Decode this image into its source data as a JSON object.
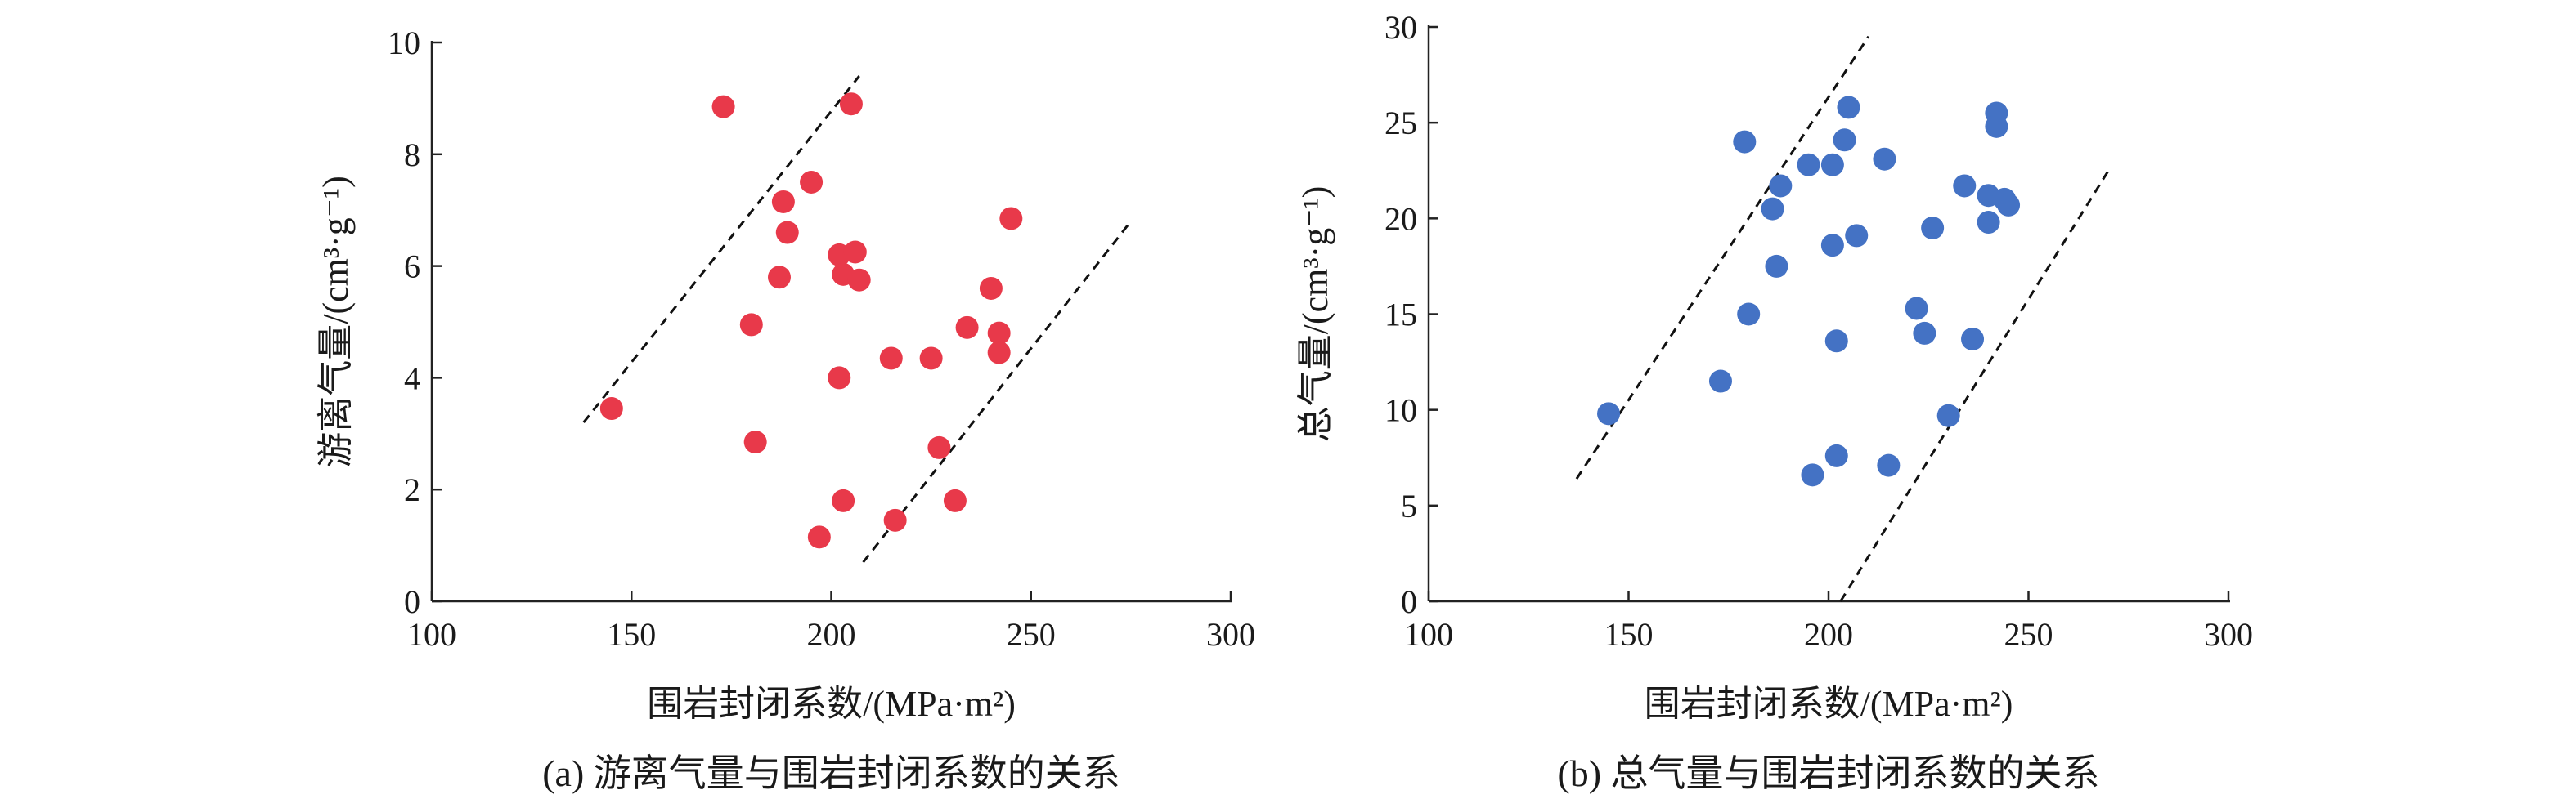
{
  "chart_data": [
    {
      "type": "scatter",
      "caption": "(a) 游离气量与围岩封闭系数的关系",
      "xlabel": "围岩封闭系数/(MPa·m²)",
      "ylabel": "游离气量/(cm³·g⁻¹)",
      "xlim": [
        100,
        300
      ],
      "ylim": [
        0,
        10
      ],
      "xticks": [
        100,
        150,
        200,
        250,
        300
      ],
      "yticks": [
        0,
        2,
        4,
        6,
        8,
        10
      ],
      "grid": false,
      "point_color": "#e8394a",
      "points": [
        {
          "x": 145,
          "y": 3.45
        },
        {
          "x": 173,
          "y": 8.85
        },
        {
          "x": 180,
          "y": 4.95
        },
        {
          "x": 181,
          "y": 2.85
        },
        {
          "x": 187,
          "y": 5.8
        },
        {
          "x": 188,
          "y": 7.15
        },
        {
          "x": 189,
          "y": 6.6
        },
        {
          "x": 195,
          "y": 7.5
        },
        {
          "x": 197,
          "y": 1.15
        },
        {
          "x": 202,
          "y": 6.2
        },
        {
          "x": 202,
          "y": 4.0
        },
        {
          "x": 203,
          "y": 5.85
        },
        {
          "x": 203,
          "y": 1.8
        },
        {
          "x": 205,
          "y": 8.9
        },
        {
          "x": 206,
          "y": 6.25
        },
        {
          "x": 207,
          "y": 5.75
        },
        {
          "x": 215,
          "y": 4.35
        },
        {
          "x": 216,
          "y": 1.45
        },
        {
          "x": 225,
          "y": 4.35
        },
        {
          "x": 227,
          "y": 2.75
        },
        {
          "x": 231,
          "y": 1.8
        },
        {
          "x": 234,
          "y": 4.9
        },
        {
          "x": 240,
          "y": 5.6
        },
        {
          "x": 242,
          "y": 4.8
        },
        {
          "x": 242,
          "y": 4.45
        },
        {
          "x": 245,
          "y": 6.85
        }
      ],
      "boundary_lines": [
        {
          "from": {
            "x": 138,
            "y": 3.2
          },
          "to": {
            "x": 207,
            "y": 9.4
          }
        },
        {
          "from": {
            "x": 208,
            "y": 0.7
          },
          "to": {
            "x": 275,
            "y": 6.8
          }
        }
      ]
    },
    {
      "type": "scatter",
      "caption": "(b) 总气量与围岩封闭系数的关系",
      "xlabel": "围岩封闭系数/(MPa·m²)",
      "ylabel": "总气量/(cm³·g⁻¹)",
      "xlim": [
        100,
        300
      ],
      "ylim": [
        0,
        30
      ],
      "xticks": [
        100,
        150,
        200,
        250,
        300
      ],
      "yticks": [
        0,
        5,
        10,
        15,
        20,
        25,
        30
      ],
      "grid": false,
      "point_color": "#4472c4",
      "points": [
        {
          "x": 145,
          "y": 9.8
        },
        {
          "x": 173,
          "y": 11.5
        },
        {
          "x": 179,
          "y": 24.0
        },
        {
          "x": 180,
          "y": 15.0
        },
        {
          "x": 186,
          "y": 20.5
        },
        {
          "x": 187,
          "y": 17.5
        },
        {
          "x": 188,
          "y": 21.7
        },
        {
          "x": 195,
          "y": 22.8
        },
        {
          "x": 196,
          "y": 6.6
        },
        {
          "x": 201,
          "y": 22.8
        },
        {
          "x": 201,
          "y": 18.6
        },
        {
          "x": 202,
          "y": 13.6
        },
        {
          "x": 202,
          "y": 7.6
        },
        {
          "x": 204,
          "y": 24.1
        },
        {
          "x": 205,
          "y": 25.8
        },
        {
          "x": 207,
          "y": 19.1
        },
        {
          "x": 214,
          "y": 23.1
        },
        {
          "x": 215,
          "y": 7.1
        },
        {
          "x": 222,
          "y": 15.3
        },
        {
          "x": 224,
          "y": 14.0
        },
        {
          "x": 226,
          "y": 19.5
        },
        {
          "x": 230,
          "y": 9.7
        },
        {
          "x": 234,
          "y": 21.7
        },
        {
          "x": 236,
          "y": 13.7
        },
        {
          "x": 240,
          "y": 21.2
        },
        {
          "x": 240,
          "y": 19.8
        },
        {
          "x": 242,
          "y": 25.5
        },
        {
          "x": 242,
          "y": 24.8
        },
        {
          "x": 244,
          "y": 21.0
        },
        {
          "x": 245,
          "y": 20.7
        }
      ],
      "boundary_lines": [
        {
          "from": {
            "x": 137,
            "y": 6.4
          },
          "to": {
            "x": 210,
            "y": 29.5
          }
        },
        {
          "from": {
            "x": 203,
            "y": 0.0
          },
          "to": {
            "x": 270,
            "y": 22.5
          }
        }
      ]
    }
  ]
}
